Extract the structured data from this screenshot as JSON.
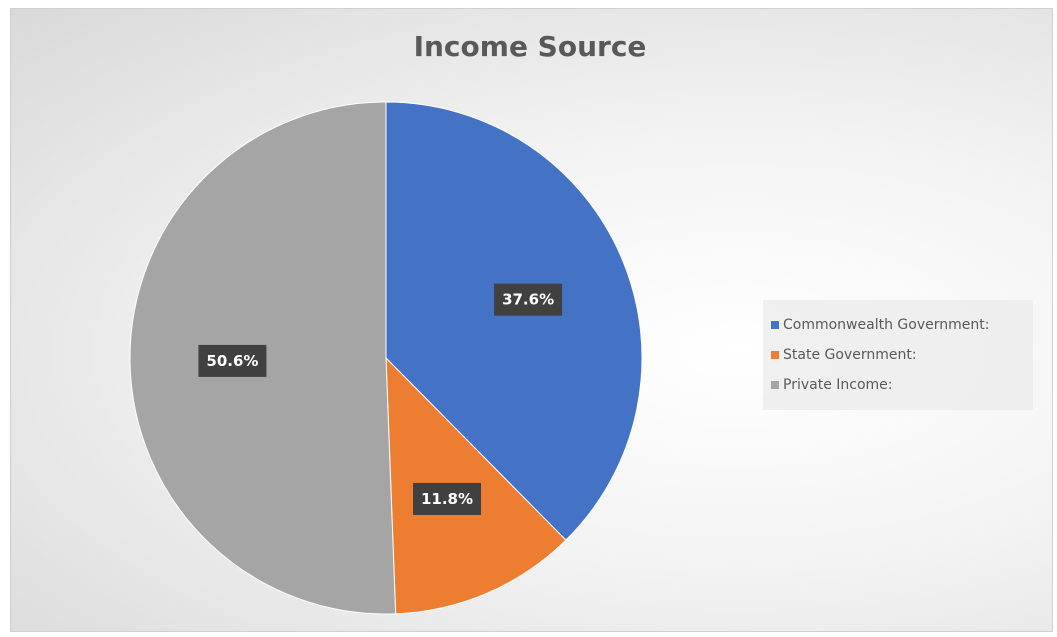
{
  "chart_data": {
    "type": "pie",
    "title": "Income Source",
    "categories": [
      "Commonwealth Government:",
      "State Government:",
      "Private Income:"
    ],
    "values": [
      37.6,
      11.8,
      50.6
    ],
    "labels": [
      "37.6%",
      "11.8%",
      "50.6%"
    ],
    "colors": [
      "#4472c4",
      "#ed7d31",
      "#a5a5a5"
    ],
    "legend_position": "right",
    "start_angle_deg": 0,
    "direction": "clockwise"
  }
}
